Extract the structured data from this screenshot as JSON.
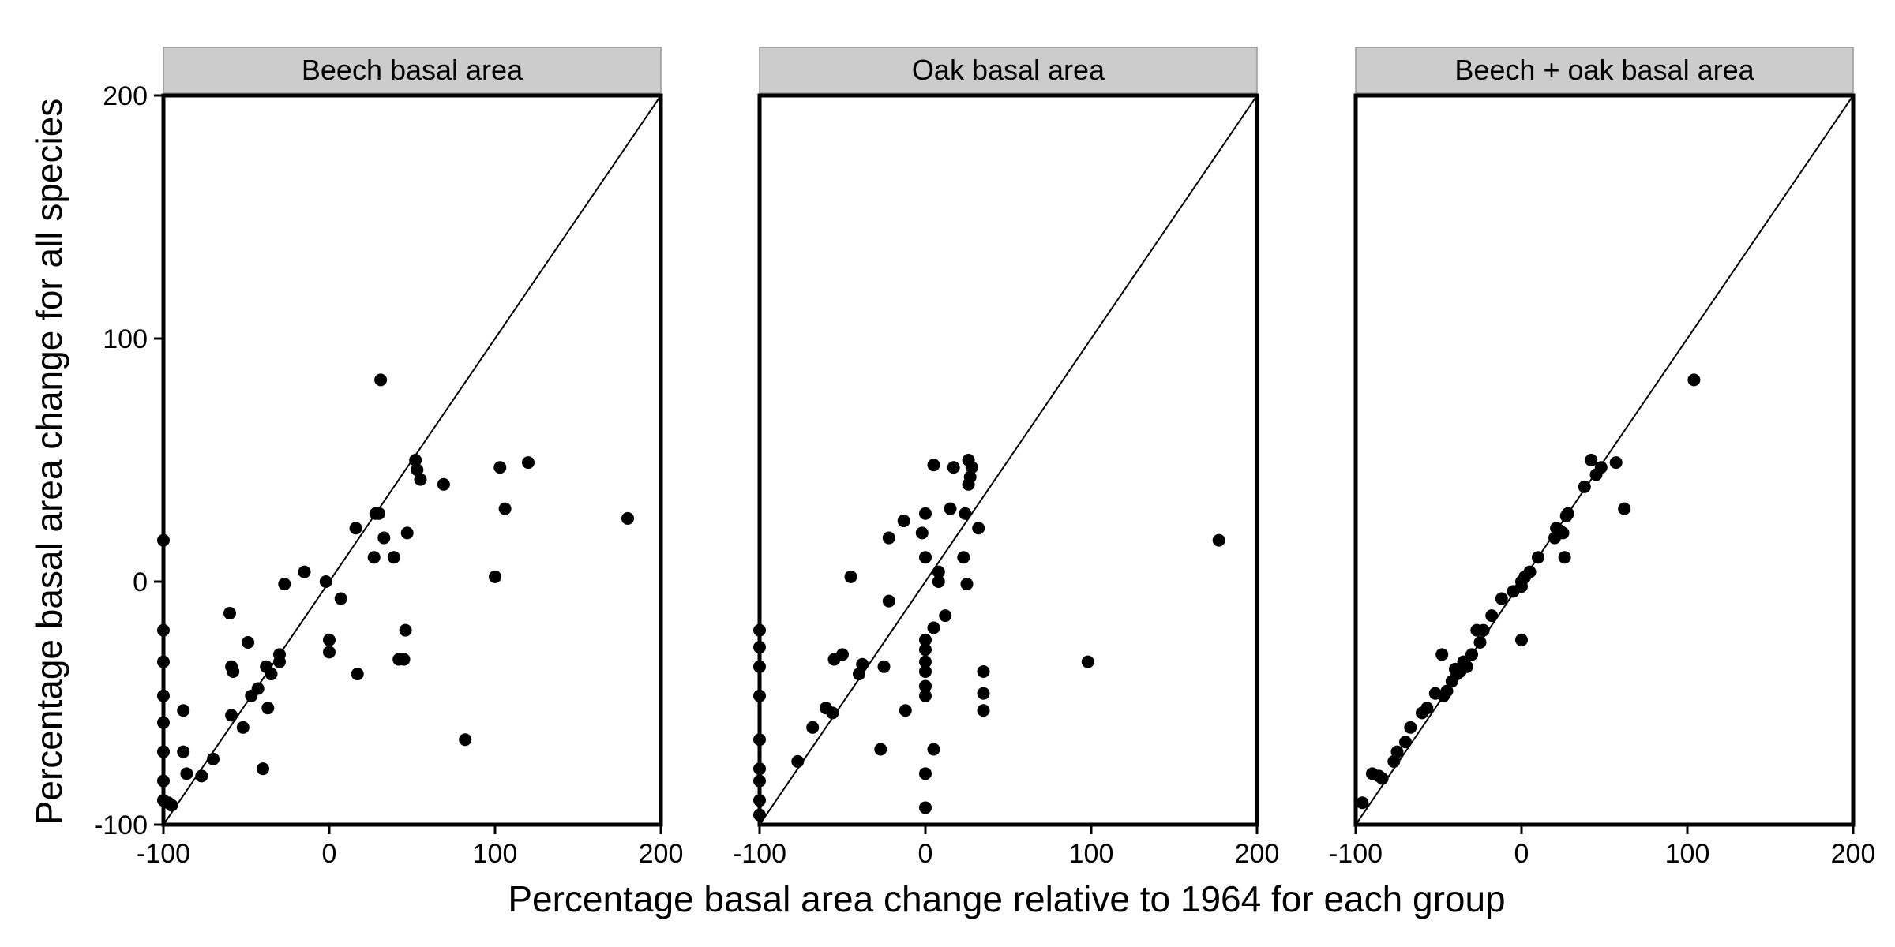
{
  "chart_data": {
    "type": "scatter",
    "layout": "facets-1x3",
    "xlabel": "Percentage basal area change relative to 1964 for each group",
    "ylabel": "Percentage basal area change for all species",
    "xlim": [
      -100,
      200
    ],
    "ylim": [
      -100,
      200
    ],
    "x_ticks": [
      "-100",
      "0",
      "100",
      "200"
    ],
    "y_ticks": [
      "-100",
      "0",
      "100",
      "200"
    ],
    "reference_line": "y = x",
    "point_color": "#000000",
    "grid": false,
    "panels": [
      {
        "title": "Beech basal area",
        "points": [
          [
            -100,
            17
          ],
          [
            -100,
            -20
          ],
          [
            -100,
            -33
          ],
          [
            -100,
            -47
          ],
          [
            -100,
            -58
          ],
          [
            -100,
            -70
          ],
          [
            -100,
            -82
          ],
          [
            -100,
            -90
          ],
          [
            -97,
            -91
          ],
          [
            -95,
            -92
          ],
          [
            -88,
            -53
          ],
          [
            -88,
            -70
          ],
          [
            -86,
            -79
          ],
          [
            -77,
            -80
          ],
          [
            -70,
            -73
          ],
          [
            -60,
            -13
          ],
          [
            -59,
            -35
          ],
          [
            -58,
            -37
          ],
          [
            -59,
            -55
          ],
          [
            -52,
            -60
          ],
          [
            -49,
            -25
          ],
          [
            -47,
            -47
          ],
          [
            -43,
            -44
          ],
          [
            -40,
            -77
          ],
          [
            -38,
            -35
          ],
          [
            -37,
            -52
          ],
          [
            -35,
            -38
          ],
          [
            -30,
            -30
          ],
          [
            -30,
            -33
          ],
          [
            -27,
            -1
          ],
          [
            -15,
            4
          ],
          [
            -2,
            0
          ],
          [
            0,
            -24
          ],
          [
            0,
            -29
          ],
          [
            7,
            -7
          ],
          [
            16,
            22
          ],
          [
            17,
            -38
          ],
          [
            27,
            10
          ],
          [
            28,
            28
          ],
          [
            30,
            28
          ],
          [
            31,
            83
          ],
          [
            33,
            18
          ],
          [
            39,
            10
          ],
          [
            42,
            -32
          ],
          [
            45,
            -32
          ],
          [
            46,
            -20
          ],
          [
            47,
            20
          ],
          [
            52,
            50
          ],
          [
            53,
            46
          ],
          [
            55,
            42
          ],
          [
            69,
            40
          ],
          [
            82,
            -65
          ],
          [
            100,
            2
          ],
          [
            103,
            47
          ],
          [
            106,
            30
          ],
          [
            120,
            49
          ],
          [
            180,
            26
          ]
        ]
      },
      {
        "title": "Oak basal area",
        "points": [
          [
            -100,
            -20
          ],
          [
            -100,
            -27
          ],
          [
            -100,
            -35
          ],
          [
            -100,
            -47
          ],
          [
            -100,
            -65
          ],
          [
            -100,
            -77
          ],
          [
            -100,
            -82
          ],
          [
            -100,
            -90
          ],
          [
            -100,
            -96
          ],
          [
            -77,
            -74
          ],
          [
            -68,
            -60
          ],
          [
            -60,
            -52
          ],
          [
            -56,
            -54
          ],
          [
            -55,
            -32
          ],
          [
            -50,
            -30
          ],
          [
            -45,
            2
          ],
          [
            -40,
            -38
          ],
          [
            -38,
            -34
          ],
          [
            -27,
            -69
          ],
          [
            -25,
            -35
          ],
          [
            -22,
            18
          ],
          [
            -22,
            -8
          ],
          [
            -13,
            25
          ],
          [
            -12,
            -53
          ],
          [
            -2,
            20
          ],
          [
            0,
            28
          ],
          [
            0,
            10
          ],
          [
            0,
            -24
          ],
          [
            0,
            -28
          ],
          [
            0,
            -33
          ],
          [
            0,
            -37
          ],
          [
            0,
            -43
          ],
          [
            0,
            -47
          ],
          [
            0,
            -79
          ],
          [
            0,
            -93
          ],
          [
            5,
            48
          ],
          [
            5,
            -19
          ],
          [
            5,
            -69
          ],
          [
            8,
            0
          ],
          [
            8,
            4
          ],
          [
            12,
            -14
          ],
          [
            15,
            30
          ],
          [
            17,
            47
          ],
          [
            23,
            10
          ],
          [
            24,
            28
          ],
          [
            25,
            -1
          ],
          [
            26,
            50
          ],
          [
            26,
            40
          ],
          [
            27,
            43
          ],
          [
            28,
            47
          ],
          [
            32,
            22
          ],
          [
            35,
            -37
          ],
          [
            35,
            -46
          ],
          [
            35,
            -53
          ],
          [
            98,
            -33
          ],
          [
            177,
            17
          ]
        ]
      },
      {
        "title": "Beech + oak basal area",
        "points": [
          [
            -96,
            -91
          ],
          [
            -90,
            -79
          ],
          [
            -86,
            -80
          ],
          [
            -84,
            -81
          ],
          [
            -77,
            -74
          ],
          [
            -75,
            -70
          ],
          [
            -70,
            -66
          ],
          [
            -67,
            -60
          ],
          [
            -60,
            -54
          ],
          [
            -57,
            -52
          ],
          [
            -52,
            -46
          ],
          [
            -48,
            -30
          ],
          [
            -47,
            -47
          ],
          [
            -45,
            -45
          ],
          [
            -42,
            -41
          ],
          [
            -40,
            -36
          ],
          [
            -39,
            -38
          ],
          [
            -37,
            -37
          ],
          [
            -35,
            -33
          ],
          [
            -33,
            -35
          ],
          [
            -30,
            -30
          ],
          [
            -27,
            -20
          ],
          [
            -25,
            -25
          ],
          [
            -23,
            -20
          ],
          [
            -18,
            -14
          ],
          [
            -12,
            -7
          ],
          [
            -5,
            -4
          ],
          [
            0,
            -2
          ],
          [
            0,
            -24
          ],
          [
            0,
            0
          ],
          [
            2,
            2
          ],
          [
            5,
            4
          ],
          [
            10,
            10
          ],
          [
            20,
            18
          ],
          [
            21,
            22
          ],
          [
            23,
            21
          ],
          [
            25,
            20
          ],
          [
            26,
            10
          ],
          [
            27,
            27
          ],
          [
            28,
            28
          ],
          [
            38,
            39
          ],
          [
            42,
            50
          ],
          [
            45,
            44
          ],
          [
            48,
            47
          ],
          [
            57,
            49
          ],
          [
            62,
            30
          ],
          [
            104,
            83
          ]
        ]
      }
    ]
  }
}
